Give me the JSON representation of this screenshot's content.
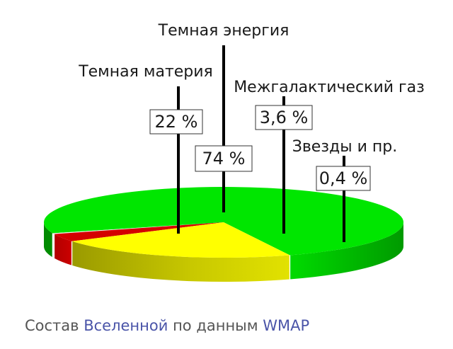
{
  "chart_data": {
    "type": "pie",
    "style": "3d-exploded",
    "title": "",
    "slices": [
      {
        "label": "Темная энергия",
        "value": 74,
        "value_label": "74 %",
        "color": "#00e600"
      },
      {
        "label": "Темная материя",
        "value": 22,
        "value_label": "22 %",
        "color": "#ffff00"
      },
      {
        "label": "Межгалактический газ",
        "value": 3.6,
        "value_label": "3,6 %",
        "color": "#d40000"
      },
      {
        "label": "Звезды и пр.",
        "value": 0.4,
        "value_label": "0,4 %",
        "color": "#f0f0f0"
      }
    ]
  },
  "caption": {
    "prefix": "Состав ",
    "link1": "Вселенной",
    "middle": " по данным ",
    "link2": "WMAP"
  }
}
